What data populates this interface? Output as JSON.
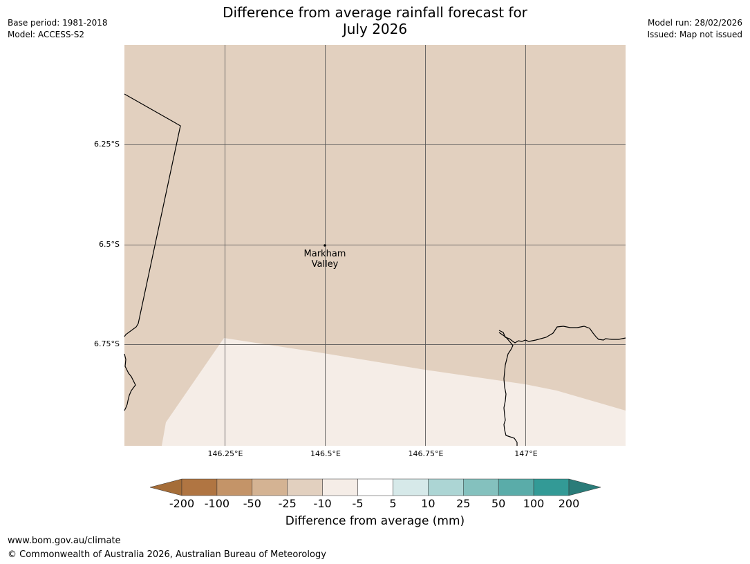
{
  "header": {
    "title_line1": "Difference from average rainfall forecast for",
    "title_line2": "July 2026",
    "base_period": "Base period: 1981-2018",
    "model": "Model: ACCESS-S2",
    "model_run": "Model run: 28/02/2026",
    "issued": "Issued: Map not issued"
  },
  "map": {
    "lat_labels": [
      "6.25°S",
      "6.5°S",
      "6.75°S"
    ],
    "lon_labels": [
      "146.25°E",
      "146.5°E",
      "146.75°E",
      "147°E"
    ],
    "place": {
      "name_line1": "Markham",
      "name_line2": "Valley"
    },
    "colors": {
      "land_dry_light": "#e2d0bf",
      "near_average": "#f5ede7",
      "grid": "#555555",
      "border": "#000000"
    }
  },
  "legend": {
    "title": "Difference from average (mm)",
    "boundaries": [
      "-200",
      "-100",
      "-50",
      "-25",
      "-10",
      "-5",
      "5",
      "10",
      "25",
      "50",
      "100",
      "200"
    ],
    "colors": [
      "#a56d38",
      "#b07542",
      "#c49468",
      "#d4b393",
      "#e2d0bf",
      "#f5ede7",
      "#ffffff",
      "#d6e9e9",
      "#acd5d4",
      "#84c1be",
      "#5aaca9",
      "#339a96",
      "#2a7c79"
    ]
  },
  "footer": {
    "url": "www.bom.gov.au/climate",
    "copyright": "© Commonwealth of Australia 2026, Australian Bureau of Meteorology"
  }
}
